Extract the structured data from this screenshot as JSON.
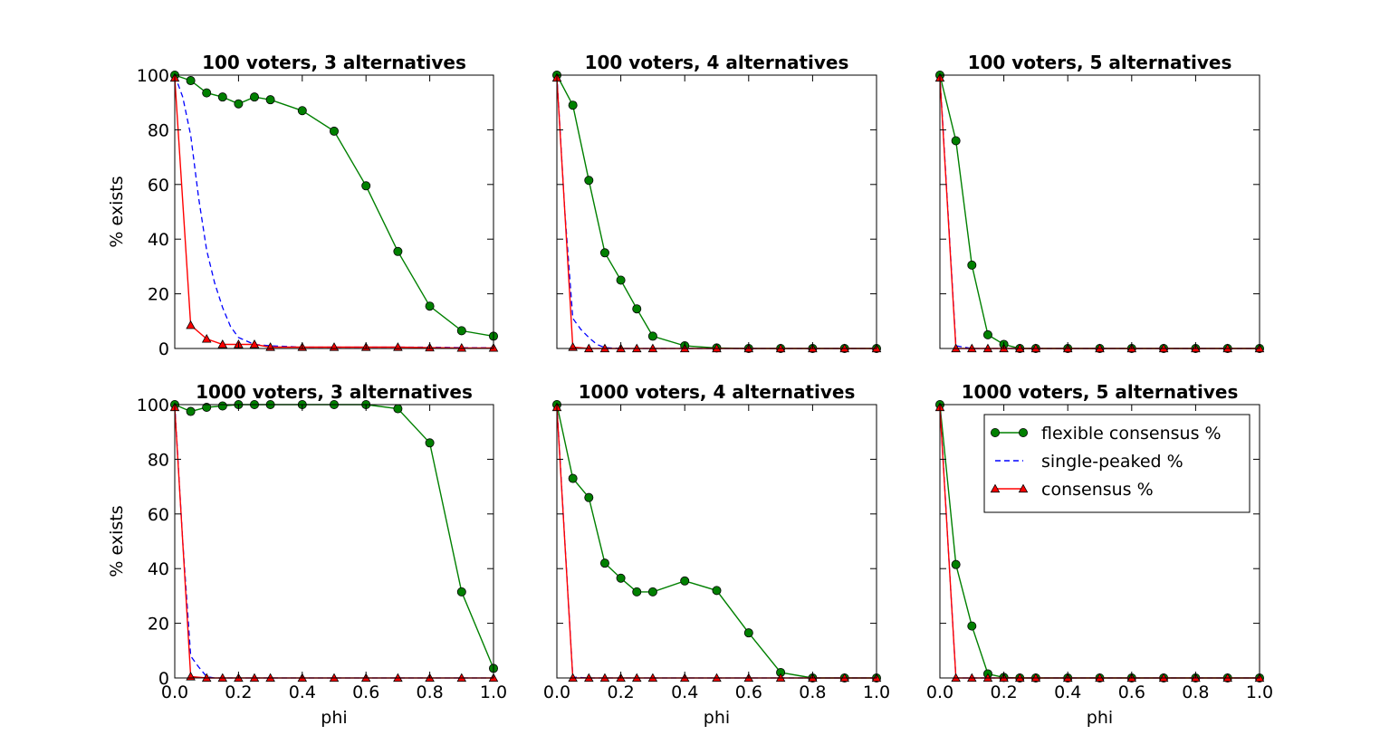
{
  "chart_data": [
    {
      "type": "line",
      "title": "100 voters, 3 alternatives",
      "xlabel": "",
      "ylabel": "% exists",
      "xlim": [
        0,
        1
      ],
      "ylim": [
        0,
        100
      ],
      "x_ticks": [
        "0.0",
        "0.2",
        "0.4",
        "0.6",
        "0.8",
        "1.0"
      ],
      "y_ticks": [
        "0",
        "20",
        "40",
        "60",
        "80",
        "100"
      ],
      "show_xticklabels": false,
      "show_yticklabels": true,
      "legend": false,
      "series": [
        {
          "name": "flexible consensus %",
          "color": "#008000",
          "style": "solid",
          "marker": "circle",
          "x": [
            0,
            0.05,
            0.1,
            0.15,
            0.2,
            0.25,
            0.3,
            0.4,
            0.5,
            0.6,
            0.7,
            0.8,
            0.9,
            1.0
          ],
          "y": [
            100,
            98,
            93.5,
            92,
            89.5,
            92,
            91,
            87,
            79.5,
            59.5,
            35.5,
            15.5,
            6.5,
            4.5
          ]
        },
        {
          "name": "single-peaked %",
          "color": "#0000ff",
          "style": "dashed",
          "marker": "none",
          "x": [
            0,
            0.025,
            0.05,
            0.075,
            0.1,
            0.125,
            0.15,
            0.175,
            0.2,
            0.25,
            0.3,
            0.4,
            0.5,
            0.6,
            0.7,
            0.8,
            0.9,
            1.0
          ],
          "y": [
            100,
            92,
            78,
            55,
            36,
            24,
            15,
            8,
            4,
            1.5,
            1,
            0.5,
            0.5,
            0.5,
            0.5,
            0.5,
            0.3,
            0.3
          ]
        },
        {
          "name": "consensus %",
          "color": "#ff0000",
          "style": "solid",
          "marker": "triangle",
          "x": [
            0,
            0.05,
            0.1,
            0.15,
            0.2,
            0.25,
            0.3,
            0.4,
            0.5,
            0.6,
            0.7,
            0.8,
            0.9,
            1.0
          ],
          "y": [
            99,
            8.5,
            3.5,
            1.5,
            1.5,
            1.5,
            0.5,
            0.5,
            0.5,
            0.5,
            0.5,
            0.3,
            0.2,
            0.2
          ]
        }
      ]
    },
    {
      "type": "line",
      "title": "100 voters, 4 alternatives",
      "xlabel": "",
      "ylabel": "",
      "xlim": [
        0,
        1
      ],
      "ylim": [
        0,
        100
      ],
      "x_ticks": [
        "0.0",
        "0.2",
        "0.4",
        "0.6",
        "0.8",
        "1.0"
      ],
      "y_ticks": [
        "0",
        "20",
        "40",
        "60",
        "80",
        "100"
      ],
      "show_xticklabels": false,
      "show_yticklabels": false,
      "legend": false,
      "series": [
        {
          "name": "flexible consensus %",
          "color": "#008000",
          "style": "solid",
          "marker": "circle",
          "x": [
            0,
            0.05,
            0.1,
            0.15,
            0.2,
            0.25,
            0.3,
            0.4,
            0.5,
            0.6,
            0.7,
            0.8,
            0.9,
            1.0
          ],
          "y": [
            100,
            89,
            61.5,
            35,
            25,
            14.5,
            4.5,
            1,
            0.2,
            0,
            0,
            0,
            0,
            0
          ]
        },
        {
          "name": "single-peaked %",
          "color": "#0000ff",
          "style": "dashed",
          "marker": "none",
          "x": [
            0,
            0.025,
            0.05,
            0.075,
            0.1,
            0.125,
            0.15,
            0.2,
            0.3,
            0.4,
            0.5,
            0.6,
            0.7,
            0.8,
            0.9,
            1.0
          ],
          "y": [
            100,
            50,
            11,
            7,
            4,
            1.5,
            0.3,
            0,
            0,
            0,
            0,
            0,
            0,
            0,
            0,
            0
          ]
        },
        {
          "name": "consensus %",
          "color": "#ff0000",
          "style": "solid",
          "marker": "triangle",
          "x": [
            0,
            0.05,
            0.1,
            0.15,
            0.2,
            0.25,
            0.3,
            0.4,
            0.5,
            0.6,
            0.7,
            0.8,
            0.9,
            1.0
          ],
          "y": [
            99,
            0.5,
            0,
            0,
            0,
            0,
            0,
            0,
            0,
            0,
            0,
            0,
            0,
            0
          ]
        }
      ]
    },
    {
      "type": "line",
      "title": "100 voters, 5 alternatives",
      "xlabel": "",
      "ylabel": "",
      "xlim": [
        0,
        1
      ],
      "ylim": [
        0,
        100
      ],
      "x_ticks": [
        "0.0",
        "0.2",
        "0.4",
        "0.6",
        "0.8",
        "1.0"
      ],
      "y_ticks": [
        "0",
        "20",
        "40",
        "60",
        "80",
        "100"
      ],
      "show_xticklabels": false,
      "show_yticklabels": false,
      "legend": false,
      "series": [
        {
          "name": "flexible consensus %",
          "color": "#008000",
          "style": "solid",
          "marker": "circle",
          "x": [
            0,
            0.05,
            0.1,
            0.15,
            0.2,
            0.25,
            0.3,
            0.4,
            0.5,
            0.6,
            0.7,
            0.8,
            0.9,
            1.0
          ],
          "y": [
            100,
            76,
            30.5,
            5,
            1.5,
            0,
            0,
            0,
            0,
            0,
            0,
            0,
            0,
            0
          ]
        },
        {
          "name": "single-peaked %",
          "color": "#0000ff",
          "style": "dashed",
          "marker": "none",
          "x": [
            0,
            0.05,
            0.075,
            0.1,
            0.2,
            0.3,
            0.4,
            0.5,
            0.6,
            0.7,
            0.8,
            0.9,
            1.0
          ],
          "y": [
            100,
            1,
            0.5,
            0,
            0,
            0,
            0,
            0,
            0,
            0,
            0,
            0,
            0
          ]
        },
        {
          "name": "consensus %",
          "color": "#ff0000",
          "style": "solid",
          "marker": "triangle",
          "x": [
            0,
            0.05,
            0.1,
            0.15,
            0.2,
            0.25,
            0.3,
            0.4,
            0.5,
            0.6,
            0.7,
            0.8,
            0.9,
            1.0
          ],
          "y": [
            99,
            0,
            0,
            0,
            0,
            0,
            0,
            0,
            0,
            0,
            0,
            0,
            0,
            0
          ]
        }
      ]
    },
    {
      "type": "line",
      "title": "1000 voters, 3 alternatives",
      "xlabel": "phi",
      "ylabel": "% exists",
      "xlim": [
        0,
        1
      ],
      "ylim": [
        0,
        100
      ],
      "x_ticks": [
        "0.0",
        "0.2",
        "0.4",
        "0.6",
        "0.8",
        "1.0"
      ],
      "y_ticks": [
        "0",
        "20",
        "40",
        "60",
        "80",
        "100"
      ],
      "show_xticklabels": true,
      "show_yticklabels": true,
      "legend": false,
      "series": [
        {
          "name": "flexible consensus %",
          "color": "#008000",
          "style": "solid",
          "marker": "circle",
          "x": [
            0,
            0.05,
            0.1,
            0.15,
            0.2,
            0.25,
            0.3,
            0.4,
            0.5,
            0.6,
            0.7,
            0.8,
            0.9,
            1.0
          ],
          "y": [
            100,
            97.5,
            99,
            99.5,
            100,
            100,
            100,
            100,
            100,
            100,
            98.5,
            86,
            31.5,
            3.5
          ]
        },
        {
          "name": "single-peaked %",
          "color": "#0000ff",
          "style": "dashed",
          "marker": "none",
          "x": [
            0,
            0.025,
            0.05,
            0.075,
            0.1,
            0.125,
            0.2,
            0.4,
            0.6,
            0.8,
            1.0
          ],
          "y": [
            100,
            50,
            8,
            4,
            0.5,
            0,
            0,
            0,
            0,
            0,
            0
          ]
        },
        {
          "name": "consensus %",
          "color": "#ff0000",
          "style": "solid",
          "marker": "triangle",
          "x": [
            0,
            0.05,
            0.1,
            0.15,
            0.2,
            0.25,
            0.3,
            0.4,
            0.5,
            0.6,
            0.7,
            0.8,
            0.9,
            1.0
          ],
          "y": [
            99,
            0.5,
            0,
            0,
            0,
            0,
            0,
            0,
            0,
            0,
            0,
            0,
            0,
            0
          ]
        }
      ]
    },
    {
      "type": "line",
      "title": "1000 voters, 4 alternatives",
      "xlabel": "phi",
      "ylabel": "",
      "xlim": [
        0,
        1
      ],
      "ylim": [
        0,
        100
      ],
      "x_ticks": [
        "0.0",
        "0.2",
        "0.4",
        "0.6",
        "0.8",
        "1.0"
      ],
      "y_ticks": [
        "0",
        "20",
        "40",
        "60",
        "80",
        "100"
      ],
      "show_xticklabels": true,
      "show_yticklabels": false,
      "legend": false,
      "series": [
        {
          "name": "flexible consensus %",
          "color": "#008000",
          "style": "solid",
          "marker": "circle",
          "x": [
            0,
            0.05,
            0.1,
            0.15,
            0.2,
            0.25,
            0.3,
            0.4,
            0.5,
            0.6,
            0.7,
            0.8,
            0.9,
            1.0
          ],
          "y": [
            100,
            73,
            66,
            42,
            36.5,
            31.5,
            31.5,
            35.5,
            32,
            16.5,
            2,
            0,
            0,
            0
          ]
        },
        {
          "name": "single-peaked %",
          "color": "#0000ff",
          "style": "dashed",
          "marker": "none",
          "x": [
            0,
            0.025,
            0.05,
            0.1,
            0.2,
            0.4,
            0.6,
            0.8,
            1.0
          ],
          "y": [
            100,
            50,
            0.3,
            0,
            0,
            0,
            0,
            0,
            0
          ]
        },
        {
          "name": "consensus %",
          "color": "#ff0000",
          "style": "solid",
          "marker": "triangle",
          "x": [
            0,
            0.05,
            0.1,
            0.15,
            0.2,
            0.25,
            0.3,
            0.4,
            0.5,
            0.6,
            0.7,
            0.8,
            0.9,
            1.0
          ],
          "y": [
            99,
            0,
            0,
            0,
            0,
            0,
            0,
            0,
            0,
            0,
            0,
            0,
            0,
            0
          ]
        }
      ]
    },
    {
      "type": "line",
      "title": "1000 voters, 5 alternatives",
      "xlabel": "phi",
      "ylabel": "",
      "xlim": [
        0,
        1
      ],
      "ylim": [
        0,
        100
      ],
      "x_ticks": [
        "0.0",
        "0.2",
        "0.4",
        "0.6",
        "0.8",
        "1.0"
      ],
      "y_ticks": [
        "0",
        "20",
        "40",
        "60",
        "80",
        "100"
      ],
      "show_xticklabels": true,
      "show_yticklabels": false,
      "legend": true,
      "legend_position": "upper-right",
      "series": [
        {
          "name": "flexible consensus %",
          "color": "#008000",
          "style": "solid",
          "marker": "circle",
          "x": [
            0,
            0.05,
            0.1,
            0.15,
            0.2,
            0.25,
            0.3,
            0.4,
            0.5,
            0.6,
            0.7,
            0.8,
            0.9,
            1.0
          ],
          "y": [
            100,
            41.5,
            19,
            1.5,
            0.2,
            0,
            0,
            0,
            0,
            0,
            0,
            0,
            0,
            0
          ]
        },
        {
          "name": "single-peaked %",
          "color": "#0000ff",
          "style": "dashed",
          "marker": "none",
          "x": [
            0,
            0.025,
            0.05,
            0.1,
            0.2,
            0.4,
            0.6,
            0.8,
            1.0
          ],
          "y": [
            100,
            50,
            0,
            0,
            0,
            0,
            0,
            0,
            0
          ]
        },
        {
          "name": "consensus %",
          "color": "#ff0000",
          "style": "solid",
          "marker": "triangle",
          "x": [
            0,
            0.05,
            0.1,
            0.15,
            0.2,
            0.25,
            0.3,
            0.4,
            0.5,
            0.6,
            0.7,
            0.8,
            0.9,
            1.0
          ],
          "y": [
            99,
            0,
            0,
            0,
            0,
            0,
            0,
            0,
            0,
            0,
            0,
            0,
            0,
            0
          ]
        }
      ]
    }
  ]
}
